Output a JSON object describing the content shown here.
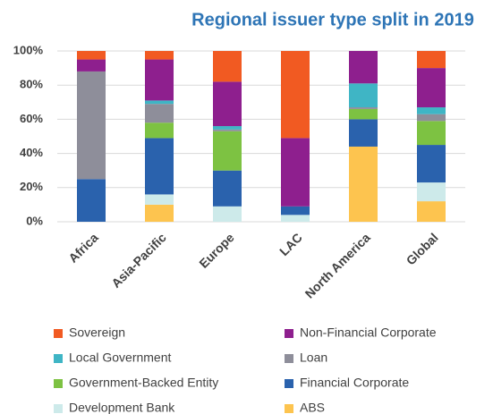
{
  "chart_data": {
    "type": "stacked_bar",
    "title": "Regional issuer type split in 2019",
    "categories": [
      "Africa",
      "Asia-Pacific",
      "Europe",
      "LAC",
      "North America",
      "Global"
    ],
    "series": [
      {
        "name": "ABS",
        "color": "#fdc44f",
        "values": [
          0,
          10,
          0,
          0,
          44,
          12
        ]
      },
      {
        "name": "Development Bank",
        "color": "#cdeaea",
        "values": [
          0,
          6,
          9,
          4,
          0,
          11
        ]
      },
      {
        "name": "Financial Corporate",
        "color": "#2a62ad",
        "values": [
          25,
          33,
          21,
          5,
          16,
          22
        ]
      },
      {
        "name": "Government-Backed Entity",
        "color": "#7dc242",
        "values": [
          0,
          9,
          23,
          0,
          6,
          14
        ]
      },
      {
        "name": "Loan",
        "color": "#8e8e9a",
        "values": [
          63,
          11,
          1,
          0,
          1,
          4
        ]
      },
      {
        "name": "Local Government",
        "color": "#3fb5c5",
        "values": [
          0,
          2,
          2,
          0,
          14,
          4
        ]
      },
      {
        "name": "Non-Financial Corporate",
        "color": "#8e1f8e",
        "values": [
          7,
          24,
          26,
          40,
          19,
          23
        ]
      },
      {
        "name": "Sovereign",
        "color": "#f15a22",
        "values": [
          5,
          5,
          18,
          51,
          0,
          10
        ]
      }
    ],
    "ylim": [
      0,
      100
    ],
    "yticks": [
      {
        "value": 0,
        "label": "0%"
      },
      {
        "value": 20,
        "label": "20%"
      },
      {
        "value": 40,
        "label": "40%"
      },
      {
        "value": 60,
        "label": "60%"
      },
      {
        "value": 80,
        "label": "80%"
      },
      {
        "value": 100,
        "label": "100%"
      }
    ],
    "grid": true
  }
}
